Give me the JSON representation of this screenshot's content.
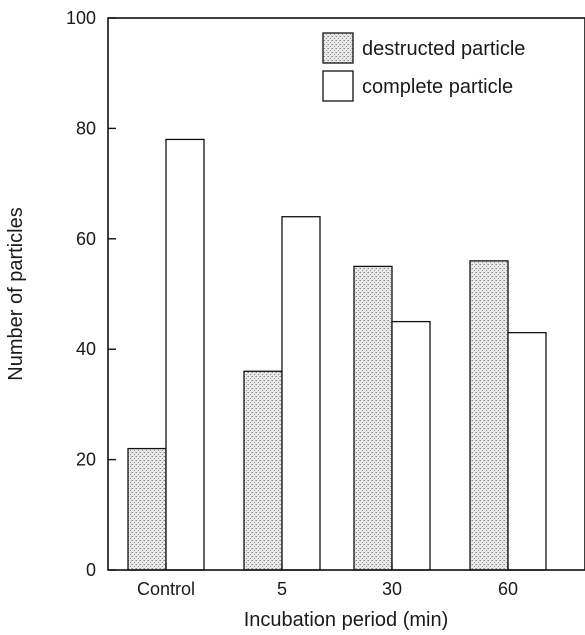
{
  "chart_data": {
    "type": "bar",
    "categories": [
      "Control",
      "5",
      "30",
      "60"
    ],
    "series": [
      {
        "name": "destructed particle",
        "values": [
          22,
          36,
          55,
          56
        ],
        "pattern": "stippled-gray"
      },
      {
        "name": "complete particle",
        "values": [
          78,
          64,
          45,
          43
        ],
        "pattern": "white"
      }
    ],
    "xlabel": "Incubation period (min)",
    "ylabel": "Number of particles",
    "ylim": [
      0,
      100
    ],
    "yticks": [
      0,
      20,
      40,
      60,
      80,
      100
    ],
    "grid": false,
    "legend_position": "top-right",
    "colors": {
      "axis": "#111111",
      "complete_fill": "#ffffff",
      "stipple_base": "#e9e9e9",
      "stipple_dot": "#8c8c8c"
    }
  }
}
